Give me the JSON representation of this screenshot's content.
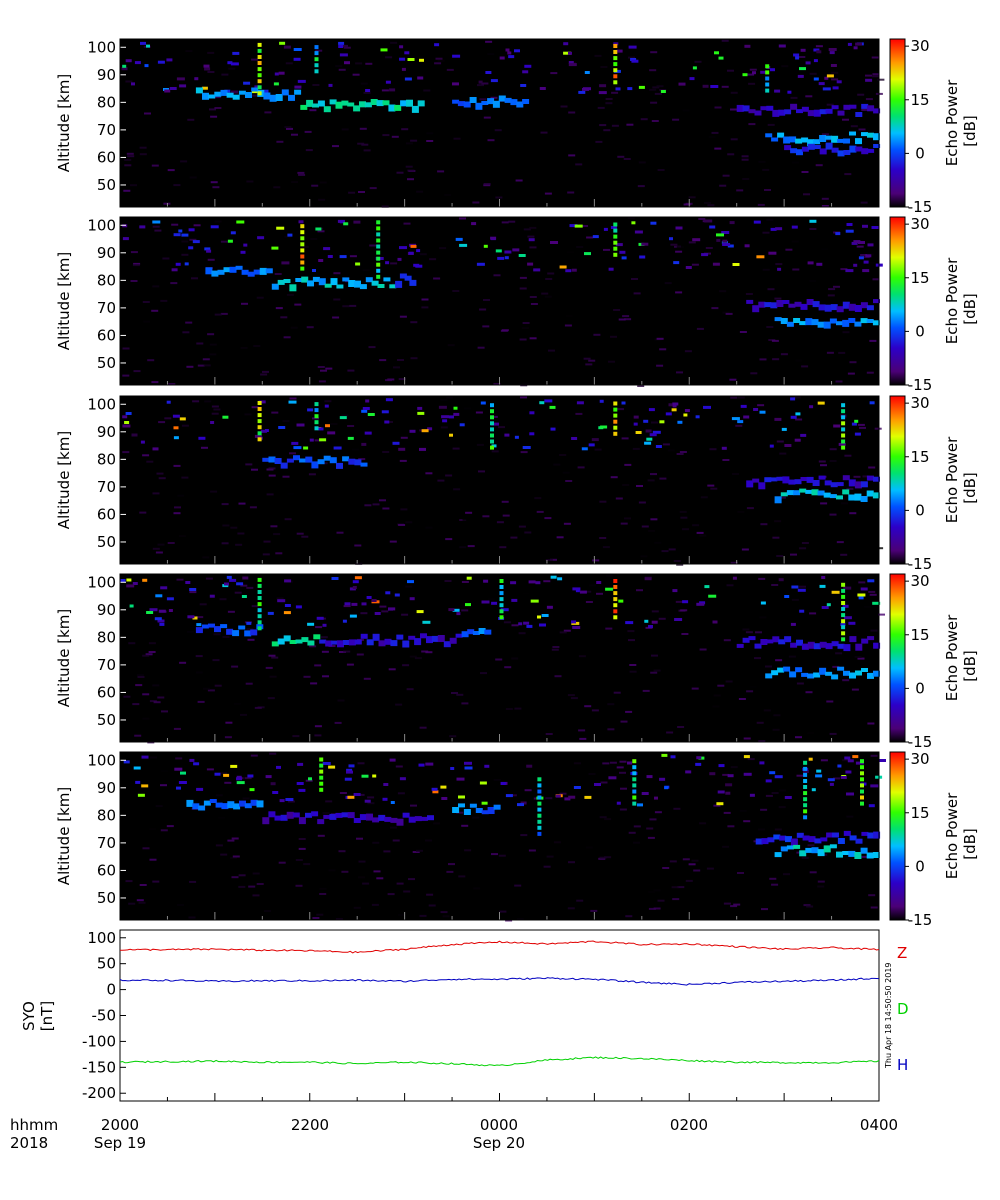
{
  "figure": {
    "xaxis_row_labels": [
      "hhmm",
      "2018"
    ],
    "time_labels": [
      "2000",
      "2200",
      "0000",
      "0200",
      "0400"
    ],
    "date_labels": [
      "Sep 19",
      "Sep 20"
    ],
    "timestamp": "Thu Apr 18 14:50:50 2019"
  },
  "chart_data": [
    {
      "type": "heatmap",
      "ylabel": "Altitude [km]",
      "yticks": [
        50,
        60,
        70,
        80,
        90,
        100
      ],
      "ylim": [
        42,
        103
      ],
      "xlim_hours": [
        20,
        28
      ],
      "colorbar": {
        "label": "Echo Power [dB]",
        "ticks": [
          30,
          15,
          0,
          -15
        ],
        "range": [
          -15,
          32
        ]
      },
      "echo_layers": [
        {
          "start": 20.8,
          "end": 21.9,
          "altitude": 84,
          "power": 5
        },
        {
          "start": 21.9,
          "end": 23.2,
          "altitude": 80,
          "power": 8
        },
        {
          "start": 23.5,
          "end": 24.3,
          "altitude": 81,
          "power": 2
        },
        {
          "start": 26.5,
          "end": 28.0,
          "altitude": 78,
          "power": -5
        },
        {
          "start": 26.8,
          "end": 28.0,
          "altitude": 68,
          "power": 4
        },
        {
          "start": 27.0,
          "end": 28.0,
          "altitude": 64,
          "power": -3
        }
      ],
      "vertical_streaks": [
        {
          "time": 21.45,
          "from": 84,
          "to": 102,
          "power": 18
        },
        {
          "time": 22.05,
          "from": 92,
          "to": 102,
          "power": 8
        },
        {
          "time": 25.2,
          "from": 88,
          "to": 102,
          "power": 22
        },
        {
          "time": 26.8,
          "from": 85,
          "to": 95,
          "power": 10
        }
      ]
    },
    {
      "type": "heatmap",
      "ylabel": "Altitude [km]",
      "yticks": [
        50,
        60,
        70,
        80,
        90,
        100
      ],
      "ylim": [
        42,
        103
      ],
      "xlim_hours": [
        20,
        28
      ],
      "colorbar": {
        "label": "Echo Power [dB]",
        "ticks": [
          30,
          15,
          0,
          -15
        ],
        "range": [
          -15,
          32
        ]
      },
      "echo_layers": [
        {
          "start": 20.9,
          "end": 21.6,
          "altitude": 84,
          "power": 2
        },
        {
          "start": 21.6,
          "end": 22.9,
          "altitude": 80,
          "power": 6
        },
        {
          "start": 22.9,
          "end": 23.1,
          "altitude": 81,
          "power": 0
        },
        {
          "start": 26.6,
          "end": 28.0,
          "altitude": 72,
          "power": -5
        },
        {
          "start": 26.9,
          "end": 28.0,
          "altitude": 66,
          "power": 4
        }
      ],
      "vertical_streaks": [
        {
          "time": 21.9,
          "from": 85,
          "to": 102,
          "power": 22
        },
        {
          "time": 22.7,
          "from": 82,
          "to": 102,
          "power": 10
        },
        {
          "time": 25.2,
          "from": 90,
          "to": 102,
          "power": 12
        }
      ]
    },
    {
      "type": "heatmap",
      "ylabel": "Altitude [km]",
      "yticks": [
        50,
        60,
        70,
        80,
        90,
        100
      ],
      "ylim": [
        42,
        103
      ],
      "xlim_hours": [
        20,
        28
      ],
      "colorbar": {
        "label": "Echo Power [dB]",
        "ticks": [
          30,
          15,
          0,
          -15
        ],
        "range": [
          -15,
          32
        ]
      },
      "echo_layers": [
        {
          "start": 21.5,
          "end": 22.6,
          "altitude": 80,
          "power": 0
        },
        {
          "start": 26.6,
          "end": 28.0,
          "altitude": 73,
          "power": -5
        },
        {
          "start": 26.9,
          "end": 28.0,
          "altitude": 68,
          "power": 6
        }
      ],
      "vertical_streaks": [
        {
          "time": 21.45,
          "from": 88,
          "to": 102,
          "power": 18
        },
        {
          "time": 22.05,
          "from": 92,
          "to": 102,
          "power": 10
        },
        {
          "time": 23.9,
          "from": 85,
          "to": 102,
          "power": 10
        },
        {
          "time": 25.2,
          "from": 90,
          "to": 102,
          "power": 20
        },
        {
          "time": 27.6,
          "from": 85,
          "to": 102,
          "power": 12
        }
      ]
    },
    {
      "type": "heatmap",
      "ylabel": "Altitude [km]",
      "yticks": [
        50,
        60,
        70,
        80,
        90,
        100
      ],
      "ylim": [
        42,
        103
      ],
      "xlim_hours": [
        20,
        28
      ],
      "colorbar": {
        "label": "Echo Power [dB]",
        "ticks": [
          30,
          15,
          0,
          -15
        ],
        "range": [
          -15,
          32
        ]
      },
      "echo_layers": [
        {
          "start": 20.8,
          "end": 21.5,
          "altitude": 84,
          "power": 0
        },
        {
          "start": 21.6,
          "end": 22.1,
          "altitude": 80,
          "power": 8
        },
        {
          "start": 22.1,
          "end": 23.6,
          "altitude": 80,
          "power": -5
        },
        {
          "start": 23.6,
          "end": 23.9,
          "altitude": 82,
          "power": 2
        },
        {
          "start": 26.5,
          "end": 28.0,
          "altitude": 79,
          "power": -5
        },
        {
          "start": 26.8,
          "end": 28.0,
          "altitude": 68,
          "power": 4
        }
      ],
      "vertical_streaks": [
        {
          "time": 21.45,
          "from": 84,
          "to": 102,
          "power": 10
        },
        {
          "time": 24.0,
          "from": 88,
          "to": 102,
          "power": 8
        },
        {
          "time": 25.2,
          "from": 88,
          "to": 102,
          "power": 24
        },
        {
          "time": 27.6,
          "from": 80,
          "to": 102,
          "power": 14
        }
      ]
    },
    {
      "type": "heatmap",
      "ylabel": "Altitude [km]",
      "yticks": [
        50,
        60,
        70,
        80,
        90,
        100
      ],
      "ylim": [
        42,
        103
      ],
      "xlim_hours": [
        20,
        28
      ],
      "colorbar": {
        "label": "Echo Power [dB]",
        "ticks": [
          30,
          15,
          0,
          -15
        ],
        "range": [
          -15,
          32
        ]
      },
      "echo_layers": [
        {
          "start": 20.7,
          "end": 21.5,
          "altitude": 85,
          "power": 2
        },
        {
          "start": 21.5,
          "end": 23.3,
          "altitude": 80,
          "power": -6
        },
        {
          "start": 23.5,
          "end": 24.0,
          "altitude": 83,
          "power": 2
        },
        {
          "start": 26.7,
          "end": 28.0,
          "altitude": 73,
          "power": -3
        },
        {
          "start": 26.9,
          "end": 28.0,
          "altitude": 68,
          "power": 6
        }
      ],
      "vertical_streaks": [
        {
          "time": 22.1,
          "from": 90,
          "to": 102,
          "power": 12
        },
        {
          "time": 24.4,
          "from": 74,
          "to": 96,
          "power": 6
        },
        {
          "time": 25.4,
          "from": 85,
          "to": 102,
          "power": 10
        },
        {
          "time": 27.2,
          "from": 80,
          "to": 102,
          "power": 10
        },
        {
          "time": 27.8,
          "from": 85,
          "to": 102,
          "power": 16
        }
      ]
    },
    {
      "type": "line",
      "ylabel_lines": [
        "SYO",
        "[nT]"
      ],
      "yticks": [
        100,
        50,
        0,
        -50,
        -100,
        -150,
        -200
      ],
      "ylim": [
        -215,
        115
      ],
      "xlim_hours": [
        20,
        28
      ],
      "grid": false,
      "legend_position": "right",
      "series": [
        {
          "name": "Z",
          "color": "#e00000",
          "x": [
            20,
            20.5,
            21,
            21.5,
            22,
            22.5,
            23,
            23.5,
            24,
            24.5,
            25,
            25.5,
            26,
            26.5,
            27,
            27.5,
            28
          ],
          "values": [
            77,
            77,
            78,
            76,
            75,
            72,
            78,
            87,
            92,
            88,
            93,
            87,
            88,
            83,
            78,
            81,
            77
          ]
        },
        {
          "name": "D",
          "color": "#00d000",
          "x": [
            20,
            20.5,
            21,
            21.5,
            22,
            22.5,
            23,
            23.5,
            24,
            24.5,
            25,
            25.5,
            26,
            26.5,
            27,
            27.5,
            28
          ],
          "values": [
            -140,
            -139,
            -138,
            -140,
            -140,
            -143,
            -140,
            -143,
            -147,
            -136,
            -131,
            -133,
            -137,
            -140,
            -141,
            -141,
            -138
          ]
        },
        {
          "name": "H",
          "color": "#0000c0",
          "x": [
            20,
            20.5,
            21,
            21.5,
            22,
            22.5,
            23,
            23.5,
            24,
            24.5,
            25,
            25.5,
            26,
            26.5,
            27,
            27.5,
            28
          ],
          "values": [
            18,
            18,
            16,
            17,
            17,
            18,
            16,
            20,
            20,
            22,
            20,
            14,
            10,
            14,
            16,
            18,
            22
          ]
        }
      ]
    }
  ]
}
